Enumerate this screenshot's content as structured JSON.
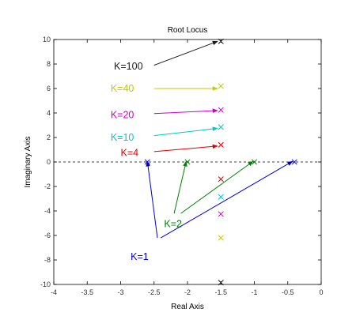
{
  "chart_data": {
    "type": "scatter",
    "title": "Root Locus",
    "xlabel": "Real Axis",
    "ylabel": "Imaginary Axis",
    "xlim": [
      -4,
      0
    ],
    "ylim": [
      -10,
      10
    ],
    "xticks": [
      -4,
      -3.5,
      -3,
      -2.5,
      -2,
      -1.5,
      -1,
      -0.5,
      0
    ],
    "yticks": [
      -10,
      -8,
      -6,
      -4,
      -2,
      0,
      2,
      4,
      6,
      8,
      10
    ],
    "xtick_labels": [
      "-4",
      "-3.5",
      "-3",
      "-2.5",
      "-2",
      "-1.5",
      "-1",
      "-0.5",
      "0"
    ],
    "ytick_labels": [
      "-10",
      "-8",
      "-6",
      "-4",
      "-2",
      "0",
      "2",
      "4",
      "6",
      "8",
      "10"
    ],
    "grid": false,
    "reference_line": {
      "y": 0,
      "style": "dashed"
    },
    "series": [
      {
        "color": "#1a1a1a",
        "points": [
          [
            -1.5,
            9.85
          ],
          [
            -1.5,
            -9.85
          ]
        ]
      },
      {
        "color": "#c8c800",
        "points": [
          [
            -1.5,
            6.2
          ],
          [
            -1.5,
            -6.2
          ]
        ]
      },
      {
        "color": "#c800c8",
        "points": [
          [
            -1.5,
            4.25
          ],
          [
            -1.5,
            -4.25
          ]
        ]
      },
      {
        "color": "#00c8c8",
        "points": [
          [
            -1.5,
            2.85
          ],
          [
            -1.5,
            -2.85
          ]
        ]
      },
      {
        "color": "#e00000",
        "points": [
          [
            -1.5,
            1.4
          ],
          [
            -1.5,
            -1.4
          ]
        ]
      },
      {
        "color": "#008000",
        "points": [
          [
            -1.0,
            0
          ],
          [
            -2.0,
            0
          ]
        ]
      },
      {
        "color": "#0000e0",
        "points": [
          [
            -0.4,
            0
          ],
          [
            -2.6,
            0
          ]
        ]
      }
    ],
    "annotations": [
      {
        "label": "K=100",
        "color": "#1a1a1a",
        "text_at": [
          -3.1,
          7.8
        ],
        "arrow_from": [
          -2.5,
          7.9
        ],
        "arrow_to": [
          -1.55,
          9.85
        ]
      },
      {
        "label": "K=40",
        "color": "#c8c800",
        "text_at": [
          -3.15,
          6.0
        ],
        "arrow_from": [
          -2.5,
          6.0
        ],
        "arrow_to": [
          -1.55,
          6.0
        ]
      },
      {
        "label": "K=20",
        "color": "#c800c8",
        "text_at": [
          -3.15,
          3.85
        ],
        "arrow_from": [
          -2.5,
          3.95
        ],
        "arrow_to": [
          -1.55,
          4.2
        ]
      },
      {
        "label": "K=10",
        "color": "#00c8c8",
        "text_at": [
          -3.15,
          2.0
        ],
        "arrow_from": [
          -2.5,
          2.15
        ],
        "arrow_to": [
          -1.55,
          2.75
        ]
      },
      {
        "label": "K=4",
        "color": "#e00000",
        "text_at": [
          -3.0,
          0.75
        ],
        "arrow_from": [
          -2.5,
          0.85
        ],
        "arrow_to": [
          -1.55,
          1.3
        ]
      },
      {
        "label": "K=2",
        "color": "#008000",
        "text_at": [
          -2.35,
          -5.05
        ],
        "arrow_from": [
          -2.1,
          -4.2
        ],
        "arrow_to": [
          -1.02,
          0.05
        ],
        "arrow2_from": [
          -2.2,
          -4.2
        ],
        "arrow2_to": [
          -2.02,
          0.05
        ]
      },
      {
        "label": "K=1",
        "color": "#0000c8",
        "text_at": [
          -2.85,
          -7.75
        ],
        "arrow_from": [
          -2.4,
          -6.2
        ],
        "arrow_to": [
          -0.43,
          0.05
        ],
        "arrow2_from": [
          -2.45,
          -6.2
        ],
        "arrow2_to": [
          -2.6,
          0.05
        ]
      }
    ]
  }
}
